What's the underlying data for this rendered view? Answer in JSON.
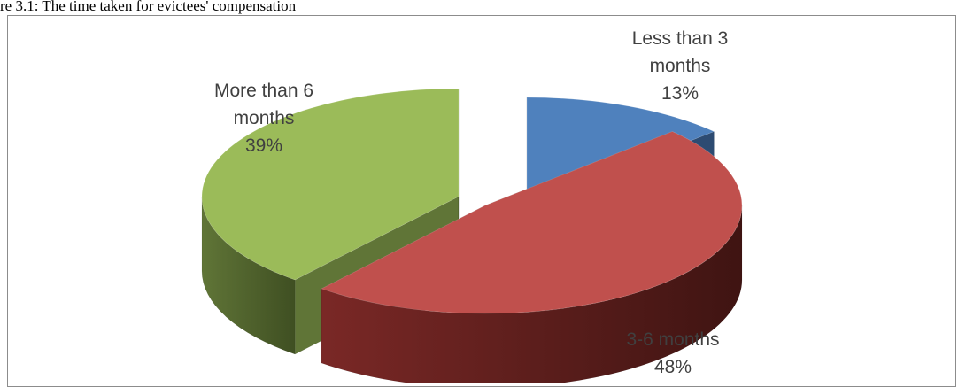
{
  "figure": {
    "caption": "re 3.1: The time taken for evictees' compensation"
  },
  "chart_data": {
    "type": "pie",
    "title": "",
    "categories": [
      "Less than 3 months",
      "3-6 months",
      "More than 6 months"
    ],
    "values": [
      13,
      48,
      39
    ],
    "value_unit": "%",
    "labels": [
      {
        "lines": [
          "Less than 3",
          "months"
        ],
        "value_text": "13%"
      },
      {
        "lines": [
          "3-6 months"
        ],
        "value_text": "48%"
      },
      {
        "lines": [
          "More than 6",
          "months"
        ],
        "value_text": "39%"
      }
    ],
    "colors": {
      "top": [
        "#4f81bd",
        "#c0504d",
        "#9bbb59"
      ],
      "side": [
        "#2d4b72",
        "#7a2826",
        "#607537"
      ],
      "side_dark": [
        "#1f3552",
        "#3f1412",
        "#3f4f22"
      ]
    },
    "style": "3d-exploded",
    "legend": "none"
  }
}
